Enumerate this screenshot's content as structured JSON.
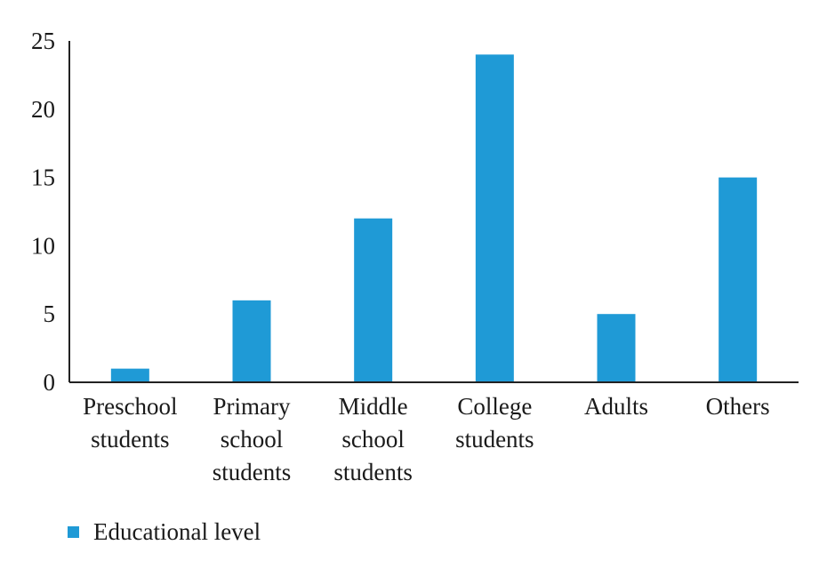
{
  "chart_data": {
    "type": "bar",
    "categories": [
      [
        "Preschool",
        "students"
      ],
      [
        "Primary",
        "school",
        "students"
      ],
      [
        "Middle",
        "school",
        "students"
      ],
      [
        "College",
        "students"
      ],
      [
        "Adults"
      ],
      [
        "Others"
      ]
    ],
    "series": [
      {
        "name": "Educational level",
        "values": [
          1,
          6,
          12,
          24,
          5,
          15
        ],
        "color": "#1f9ad6"
      }
    ],
    "ylim": [
      0,
      25
    ],
    "yticks": [
      "0",
      "5",
      "10",
      "15",
      "20",
      "25"
    ],
    "grid": false,
    "legend_position": "bottom-left"
  }
}
